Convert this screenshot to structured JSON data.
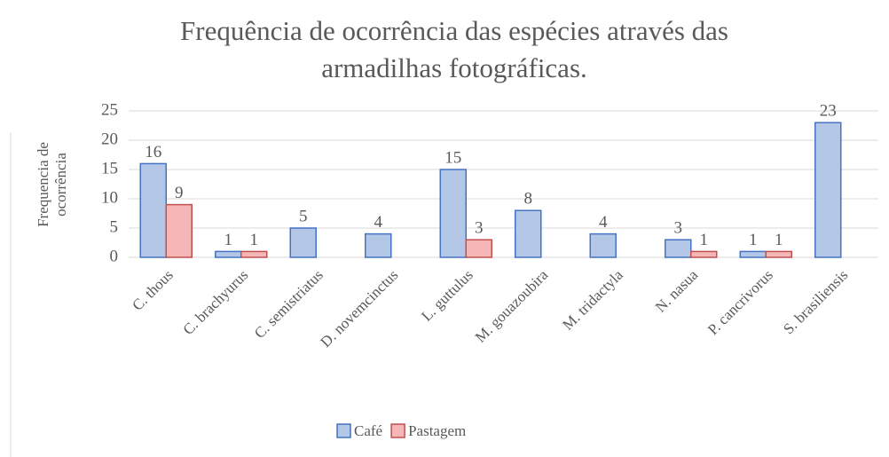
{
  "chart_data": {
    "type": "bar",
    "title": [
      "Frequência de ocorrência das espécies através das",
      "armadilhas fotográficas."
    ],
    "y_label": [
      "Frequencia de",
      "ocorrência"
    ],
    "categories": [
      "C. thous",
      "C. brachyurus",
      "C. semistriatus",
      "D. novemcinctus",
      "L. guttulus",
      "M. gouazoubira",
      "M. tridactyla",
      "N. nasua",
      "P. cancrivorus",
      "S. brasiliensis"
    ],
    "series": [
      {
        "name": "Café",
        "color": "#b4c7e7",
        "edge": "#4472c4",
        "values": [
          16,
          1,
          5,
          4,
          15,
          8,
          4,
          3,
          1,
          23
        ],
        "value_labels": [
          "16",
          "1",
          "5",
          "4",
          "15",
          "8",
          "4",
          "3",
          "1",
          "23"
        ]
      },
      {
        "name": "Pastagem",
        "color": "#f4b6b6",
        "edge": "#c0504d",
        "values": [
          9,
          1,
          0,
          0,
          3,
          0,
          0,
          1,
          1,
          0
        ],
        "value_labels": [
          "9",
          "1",
          null,
          null,
          "3",
          null,
          null,
          "1",
          "1",
          null
        ]
      }
    ],
    "ylim": [
      0,
      25
    ],
    "yticks": [
      0,
      5,
      10,
      15,
      20,
      25
    ],
    "grid": true,
    "legend": "bottom"
  }
}
